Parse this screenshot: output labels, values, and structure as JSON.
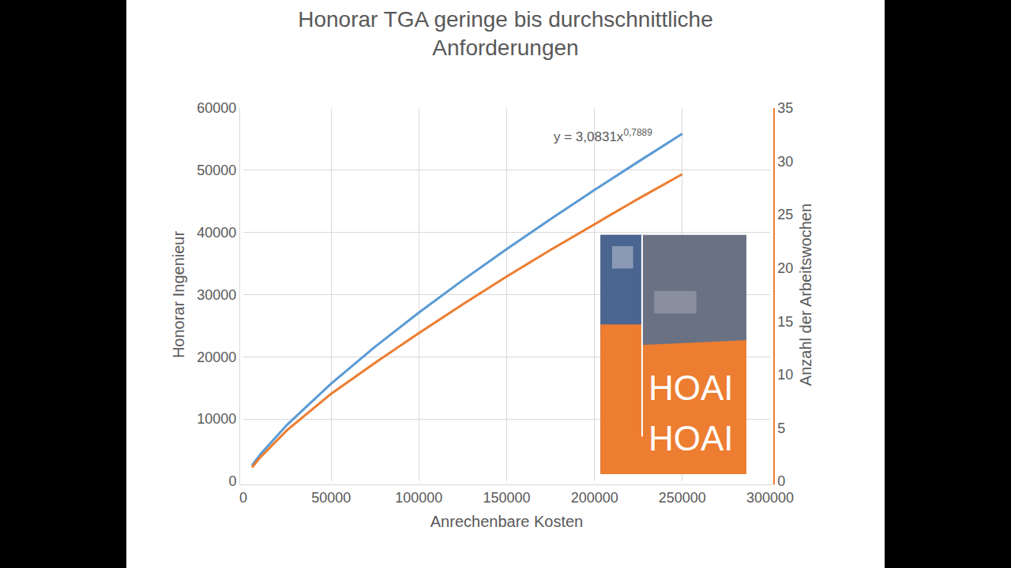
{
  "chart_data": {
    "type": "line",
    "title": "Honorar TGA geringe bis durchschnittliche Anforderungen",
    "x_label": "Anrechenbare Kosten",
    "y_label": "Honorar Ingenieur",
    "y2_label": "Anzahl der Arbeitswochen",
    "x": [
      5000,
      10000,
      25000,
      50000,
      75000,
      100000,
      125000,
      150000,
      175000,
      200000,
      225000,
      250000
    ],
    "series": [
      {
        "color": "#5b9bd5",
        "line_style": "solid",
        "values": [
          2550,
          4410,
          9090,
          15690,
          21610,
          27110,
          32330,
          37320,
          42150,
          46830,
          51390,
          55870
        ]
      },
      {
        "color": "#5b9bd5",
        "line_style": "dot",
        "values": [
          2550,
          4410,
          9090,
          15690,
          21610,
          27110,
          32330,
          37320,
          42150,
          46830,
          51390,
          55870
        ]
      },
      {
        "color": "#ed7d31",
        "line_style": "solid",
        "axis": "y2",
        "values": [
          1.3,
          2.3,
          4.8,
          8.2,
          11.1,
          13.9,
          16.6,
          19.2,
          21.7,
          24.1,
          26.5,
          28.8
        ]
      }
    ],
    "xlim": [
      0,
      300000
    ],
    "xticks": [
      0,
      50000,
      100000,
      150000,
      200000,
      250000,
      300000
    ],
    "ylim": [
      0,
      60000
    ],
    "yticks": [
      0,
      10000,
      20000,
      30000,
      40000,
      50000,
      60000
    ],
    "y2lim": [
      0,
      35
    ],
    "y2ticks": [
      0,
      5,
      10,
      15,
      20,
      25,
      30,
      35
    ],
    "grid": true,
    "annotations": [
      {
        "text": "y = 3,0831x",
        "superscript": "0,7889",
        "x": 205000,
        "y": 55500
      }
    ],
    "inset": {
      "texts": [
        "HOAI",
        "HOAI"
      ]
    }
  }
}
